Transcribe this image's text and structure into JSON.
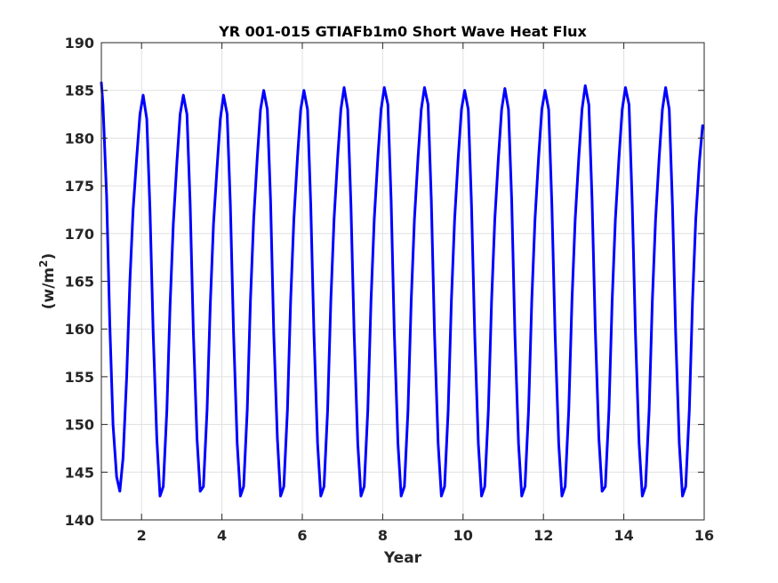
{
  "chart_data": {
    "type": "line",
    "title": "YR 001-015 GTIAFb1m0 Short Wave Heat Flux",
    "xlabel": "Year",
    "ylabel": "(w/m",
    "ylabel_superscript": "2",
    "ylabel_close": ")",
    "xlim": [
      1,
      16
    ],
    "ylim": [
      140,
      190
    ],
    "xticks": [
      2,
      4,
      6,
      8,
      10,
      12,
      14,
      16
    ],
    "yticks": [
      140,
      145,
      150,
      155,
      160,
      165,
      170,
      175,
      180,
      185,
      190
    ],
    "grid": true,
    "line_color": "#0000ff",
    "series": [
      {
        "x": [
          1.0,
          1.04,
          1.13,
          1.21,
          1.29,
          1.38,
          1.46,
          1.54,
          1.63,
          1.71,
          1.79,
          1.88,
          1.96,
          2.04,
          2.13,
          2.21,
          2.29,
          2.38,
          2.46,
          2.54,
          2.63,
          2.71,
          2.79,
          2.88,
          2.96,
          3.04,
          3.13,
          3.21,
          3.29,
          3.38,
          3.46,
          3.54,
          3.63,
          3.71,
          3.79,
          3.88,
          3.96,
          4.04,
          4.13,
          4.21,
          4.29,
          4.38,
          4.46,
          4.54,
          4.63,
          4.71,
          4.79,
          4.88,
          4.96,
          5.04,
          5.13,
          5.21,
          5.29,
          5.38,
          5.46,
          5.54,
          5.63,
          5.71,
          5.79,
          5.88,
          5.96,
          6.04,
          6.13,
          6.21,
          6.29,
          6.38,
          6.46,
          6.54,
          6.63,
          6.71,
          6.79,
          6.88,
          6.96,
          7.04,
          7.13,
          7.21,
          7.29,
          7.38,
          7.46,
          7.54,
          7.63,
          7.71,
          7.79,
          7.88,
          7.96,
          8.04,
          8.13,
          8.21,
          8.29,
          8.38,
          8.46,
          8.54,
          8.63,
          8.71,
          8.79,
          8.88,
          8.96,
          9.04,
          9.13,
          9.21,
          9.29,
          9.38,
          9.46,
          9.54,
          9.63,
          9.71,
          9.79,
          9.88,
          9.96,
          10.04,
          10.13,
          10.21,
          10.29,
          10.38,
          10.46,
          10.54,
          10.63,
          10.71,
          10.79,
          10.88,
          10.96,
          11.04,
          11.13,
          11.21,
          11.29,
          11.38,
          11.46,
          11.54,
          11.63,
          11.71,
          11.79,
          11.88,
          11.96,
          12.04,
          12.13,
          12.21,
          12.29,
          12.38,
          12.46,
          12.54,
          12.63,
          12.71,
          12.79,
          12.88,
          12.96,
          13.04,
          13.13,
          13.21,
          13.29,
          13.38,
          13.46,
          13.54,
          13.63,
          13.71,
          13.79,
          13.88,
          13.96,
          14.04,
          14.13,
          14.21,
          14.29,
          14.38,
          14.46,
          14.54,
          14.63,
          14.71,
          14.79,
          14.88,
          14.96,
          15.04,
          15.13,
          15.21,
          15.29,
          15.38,
          15.46,
          15.54,
          15.63,
          15.71,
          15.79,
          15.88,
          15.96
        ],
        "y": [
          185.8,
          183.5,
          174.0,
          160.5,
          150.0,
          144.5,
          143.0,
          146.5,
          155.0,
          165.0,
          172.5,
          178.0,
          182.5,
          184.5,
          182.0,
          172.5,
          159.5,
          148.5,
          142.5,
          143.5,
          151.5,
          162.5,
          171.0,
          177.5,
          182.5,
          184.5,
          182.5,
          173.0,
          159.5,
          148.5,
          143.0,
          143.5,
          151.5,
          162.5,
          171.0,
          177.0,
          182.0,
          184.5,
          182.5,
          173.0,
          159.5,
          148.0,
          142.5,
          143.5,
          151.5,
          163.0,
          171.5,
          178.0,
          183.0,
          185.0,
          183.0,
          173.5,
          159.5,
          148.5,
          142.5,
          143.5,
          151.5,
          163.0,
          171.5,
          178.0,
          183.0,
          185.0,
          183.0,
          173.0,
          159.5,
          148.0,
          142.5,
          143.5,
          151.5,
          163.0,
          171.5,
          178.0,
          183.0,
          185.3,
          183.0,
          173.0,
          159.5,
          148.0,
          142.5,
          143.5,
          151.5,
          163.0,
          171.5,
          178.0,
          183.0,
          185.3,
          183.5,
          173.5,
          159.5,
          148.0,
          142.5,
          143.5,
          151.5,
          163.0,
          171.5,
          178.0,
          183.0,
          185.3,
          183.5,
          173.5,
          159.5,
          148.0,
          142.5,
          143.5,
          151.5,
          163.0,
          171.5,
          178.0,
          183.0,
          185.0,
          183.0,
          173.0,
          159.5,
          148.0,
          142.5,
          143.5,
          151.5,
          163.0,
          171.5,
          178.0,
          183.0,
          185.2,
          183.0,
          173.5,
          159.5,
          148.0,
          142.5,
          143.5,
          151.5,
          163.0,
          171.5,
          178.0,
          183.0,
          185.0,
          183.0,
          173.0,
          159.5,
          148.0,
          142.5,
          143.5,
          151.5,
          163.0,
          171.5,
          178.0,
          183.0,
          185.5,
          183.5,
          173.5,
          160.0,
          148.5,
          143.0,
          143.5,
          151.5,
          163.0,
          171.5,
          178.0,
          183.0,
          185.3,
          183.5,
          173.0,
          159.5,
          148.0,
          142.5,
          143.5,
          151.5,
          163.0,
          171.5,
          178.0,
          183.0,
          185.3,
          183.0,
          173.0,
          159.5,
          148.0,
          142.5,
          143.5,
          151.5,
          163.0,
          171.5,
          177.5,
          181.3
        ]
      }
    ]
  }
}
